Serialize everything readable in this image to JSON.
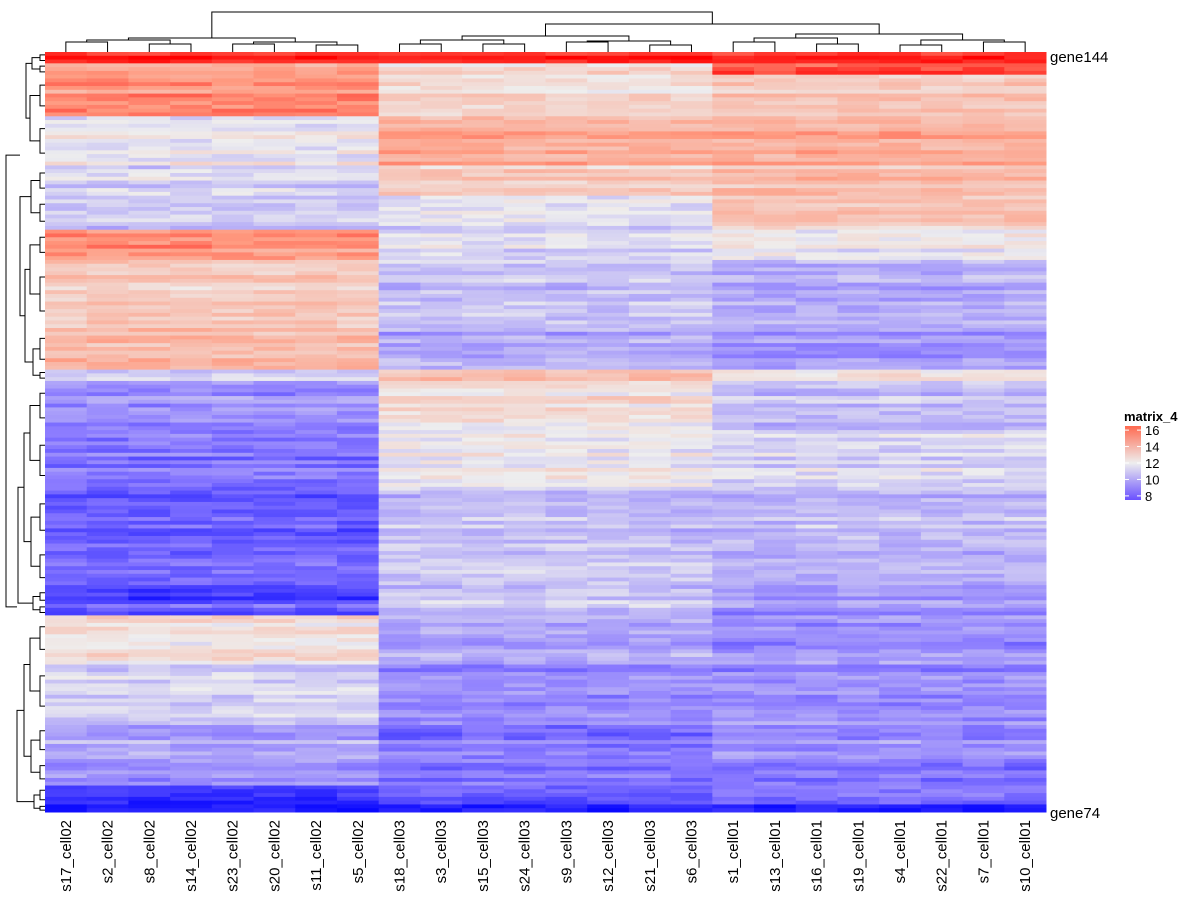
{
  "chart_data": {
    "type": "heatmap",
    "legend": {
      "title": "matrix_4",
      "ticks": [
        8,
        10,
        12,
        14,
        16
      ],
      "placement": "right"
    },
    "color_scale": {
      "low": "#0000ff",
      "mid": "#eeeeee",
      "high": "#ff0000",
      "mid_value": 12
    },
    "columns": [
      "s17_cell02",
      "s2_cell02",
      "s8_cell02",
      "s14_cell02",
      "s23_cell02",
      "s20_cell02",
      "s11_cell02",
      "s5_cell02",
      "s18_cell03",
      "s3_cell03",
      "s15_cell03",
      "s24_cell03",
      "s9_cell03",
      "s12_cell03",
      "s21_cell03",
      "s6_cell03",
      "s1_cell01",
      "s13_cell01",
      "s16_cell01",
      "s19_cell01",
      "s4_cell01",
      "s22_cell01",
      "s7_cell01",
      "s10_cell01"
    ],
    "column_groups": [
      {
        "name": "cell02",
        "columns": [
          0,
          7
        ]
      },
      {
        "name": "cell03",
        "columns": [
          8,
          15
        ]
      },
      {
        "name": "cell01",
        "columns": [
          16,
          23
        ]
      }
    ],
    "row_labels_visible": {
      "first": "gene144",
      "last": "gene74"
    },
    "row_bands": [
      {
        "rows": 3,
        "values": [
          16.5,
          16.5,
          16.5
        ]
      },
      {
        "rows": 3,
        "values": [
          14,
          12.5,
          15.5
        ]
      },
      {
        "rows": 11,
        "values": [
          14.5,
          12.5,
          13
        ]
      },
      {
        "rows": 13,
        "values": [
          12,
          14,
          14
        ]
      },
      {
        "rows": 8,
        "values": [
          11.5,
          13,
          13.5
        ]
      },
      {
        "rows": 9,
        "values": [
          11,
          11.5,
          13
        ]
      },
      {
        "rows": 8,
        "values": [
          14.5,
          11.5,
          12
        ]
      },
      {
        "rows": 18,
        "values": [
          13,
          11,
          10.5
        ]
      },
      {
        "rows": 11,
        "values": [
          13.5,
          10.5,
          10
        ]
      },
      {
        "rows": 3,
        "values": [
          11.5,
          13.5,
          12.5
        ]
      },
      {
        "rows": 13,
        "values": [
          10,
          12.5,
          11
        ]
      },
      {
        "rows": 16,
        "values": [
          9.5,
          12,
          11.5
        ]
      },
      {
        "rows": 14,
        "values": [
          9,
          11,
          11
        ]
      },
      {
        "rows": 12,
        "values": [
          9,
          11,
          10.5
        ]
      },
      {
        "rows": 4,
        "values": [
          8,
          11,
          10
        ]
      },
      {
        "rows": 3,
        "values": [
          9,
          11,
          10
        ]
      },
      {
        "rows": 12,
        "values": [
          12.5,
          10.5,
          10
        ]
      },
      {
        "rows": 16,
        "values": [
          11.5,
          10,
          10
        ]
      },
      {
        "rows": 10,
        "values": [
          10.5,
          9.5,
          10
        ]
      },
      {
        "rows": 7,
        "values": [
          10,
          9.5,
          9.5
        ]
      },
      {
        "rows": 5,
        "values": [
          8.2,
          9,
          9.5
        ]
      },
      {
        "rows": 2,
        "values": [
          8,
          8,
          8
        ]
      }
    ]
  }
}
